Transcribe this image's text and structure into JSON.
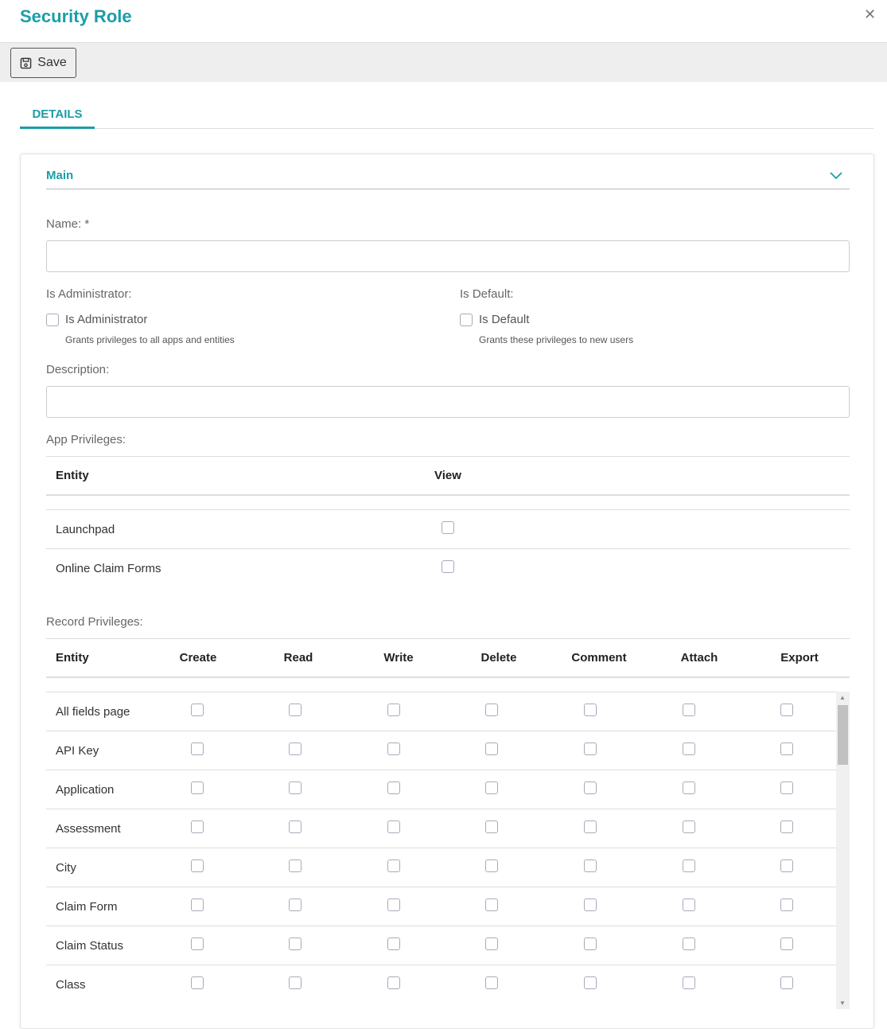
{
  "title": "Security Role",
  "toolbar": {
    "save_label": "Save"
  },
  "tabs": [
    {
      "label": "DETAILS",
      "active": true
    }
  ],
  "section": {
    "title": "Main"
  },
  "form": {
    "name_label": "Name: *",
    "name_value": "",
    "is_admin_label": "Is Administrator:",
    "is_admin_checkbox": "Is Administrator",
    "is_admin_help": "Grants privileges to all apps and entities",
    "is_default_label": "Is Default:",
    "is_default_checkbox": "Is Default",
    "is_default_help": "Grants these privileges to new users",
    "description_label": "Description:",
    "description_value": ""
  },
  "app_privileges": {
    "label": "App Privileges:",
    "headers": [
      "Entity",
      "View"
    ],
    "rows": [
      {
        "entity": "Launchpad",
        "view": false
      },
      {
        "entity": "Online Claim Forms",
        "view": false
      }
    ]
  },
  "record_privileges": {
    "label": "Record Privileges:",
    "headers": [
      "Entity",
      "Create",
      "Read",
      "Write",
      "Delete",
      "Comment",
      "Attach",
      "Export"
    ],
    "rows": [
      "All fields page",
      "API Key",
      "Application",
      "Assessment",
      "City",
      "Claim Form",
      "Claim Status",
      "Class"
    ]
  },
  "colors": {
    "accent": "#1a9ea8"
  }
}
